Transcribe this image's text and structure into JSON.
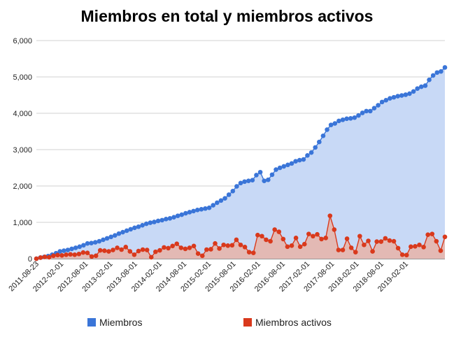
{
  "chart_data": {
    "type": "line",
    "title": "Miembros en total y miembros activos",
    "xlabel": "",
    "ylabel": "",
    "ylim": [
      0,
      6000
    ],
    "yticks": [
      "0",
      "1,000",
      "2,000",
      "3,000",
      "4,000",
      "5,000",
      "6,000"
    ],
    "x_tick_labels": [
      "2011-08-23",
      "2012-02-01",
      "2012-08-01",
      "2013-02-01",
      "2013-08-01",
      "2014-02-01",
      "2014-08-01",
      "2015-02-01",
      "2015-08-01",
      "2016-02-01",
      "2016-08-01",
      "2017-02-01",
      "2017-08-01",
      "2018-02-01",
      "2018-08-01",
      "2019-02-01"
    ],
    "grid": true,
    "legend_position": "bottom",
    "series": [
      {
        "name": "Miembros",
        "color": "#3a75d8",
        "fill": "#c8d9f6",
        "values": [
          0,
          30,
          50,
          70,
          110,
          150,
          200,
          220,
          240,
          270,
          300,
          330,
          370,
          420,
          430,
          450,
          480,
          520,
          560,
          600,
          640,
          690,
          730,
          770,
          810,
          850,
          880,
          920,
          960,
          990,
          1010,
          1040,
          1060,
          1090,
          1110,
          1140,
          1180,
          1210,
          1250,
          1280,
          1310,
          1340,
          1360,
          1380,
          1400,
          1470,
          1540,
          1600,
          1660,
          1760,
          1860,
          1990,
          2080,
          2120,
          2140,
          2160,
          2300,
          2380,
          2140,
          2170,
          2310,
          2450,
          2500,
          2540,
          2580,
          2620,
          2680,
          2710,
          2730,
          2840,
          2920,
          3060,
          3210,
          3380,
          3550,
          3680,
          3720,
          3790,
          3820,
          3850,
          3860,
          3880,
          3940,
          4010,
          4060,
          4060,
          4140,
          4220,
          4310,
          4360,
          4410,
          4440,
          4470,
          4490,
          4510,
          4540,
          4600,
          4680,
          4730,
          4760,
          4920,
          5040,
          5120,
          5150,
          5260
        ]
      },
      {
        "name": "Miembros activos",
        "color": "#d9391c",
        "fill": "#e8b3a8",
        "values": [
          0,
          30,
          50,
          40,
          80,
          100,
          90,
          110,
          120,
          110,
          130,
          170,
          160,
          60,
          80,
          230,
          220,
          200,
          240,
          300,
          250,
          320,
          200,
          110,
          210,
          250,
          240,
          40,
          190,
          230,
          310,
          290,
          350,
          410,
          300,
          270,
          300,
          350,
          140,
          80,
          250,
          260,
          420,
          280,
          380,
          360,
          370,
          520,
          380,
          320,
          180,
          160,
          650,
          620,
          520,
          480,
          800,
          740,
          540,
          330,
          360,
          570,
          330,
          400,
          680,
          620,
          670,
          540,
          570,
          1180,
          800,
          240,
          240,
          550,
          300,
          180,
          620,
          380,
          490,
          200,
          470,
          470,
          560,
          500,
          480,
          290,
          110,
          100,
          330,
          340,
          380,
          320,
          660,
          680,
          480,
          220,
          600
        ]
      }
    ]
  }
}
